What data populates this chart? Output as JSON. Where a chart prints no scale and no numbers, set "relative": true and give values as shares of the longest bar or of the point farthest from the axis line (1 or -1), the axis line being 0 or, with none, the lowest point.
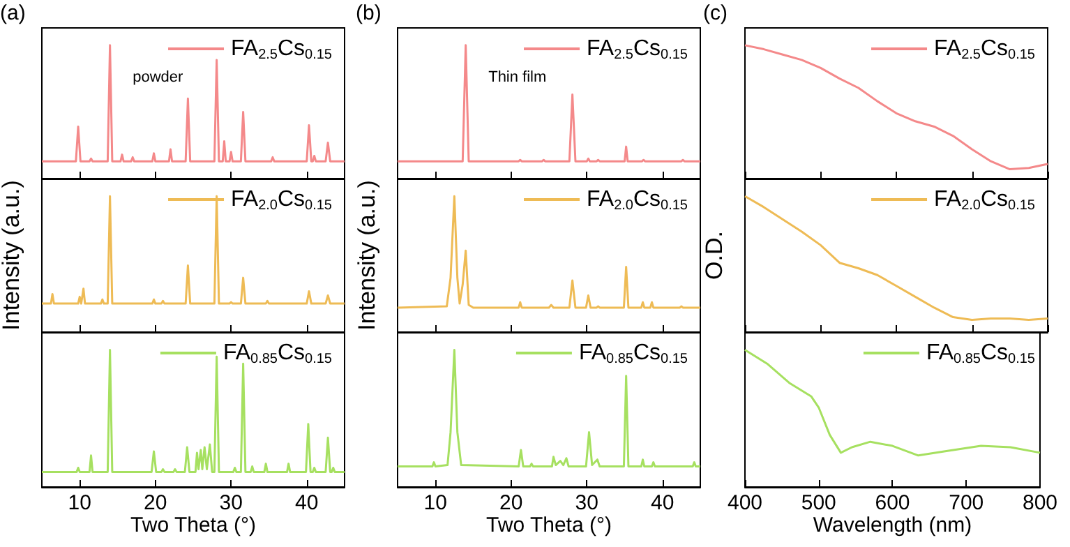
{
  "chart_data": [
    {
      "type": "line",
      "relative": true,
      "annotations": [
        "(a)",
        "powder"
      ],
      "xlim": [
        5,
        45
      ],
      "xticks": [
        10,
        20,
        30,
        40
      ],
      "tick_labels": false,
      "legend": "top right",
      "x": [
        5,
        9.5,
        9.8,
        10.1,
        11.3,
        11.5,
        11.7,
        13.7,
        14,
        14.3,
        15.4,
        15.6,
        15.8,
        16.8,
        17,
        17.2,
        19.6,
        19.8,
        20,
        21.8,
        22,
        22.2,
        24,
        24.3,
        24.6,
        27.8,
        28.1,
        28.4,
        28.9,
        29.1,
        29.3,
        29.8,
        30,
        30.2,
        31.3,
        31.6,
        31.9,
        35.3,
        35.5,
        35.7,
        40,
        40.3,
        40.6,
        40.8,
        41,
        41.2,
        42.5,
        42.8,
        43.1,
        45
      ],
      "series": [
        {
          "name": "FA$_{2.5}$Cs$_{0.15}$",
          "color": "#f4898a",
          "values": [
            0.13,
            0.13,
            0.39,
            0.13,
            0.13,
            0.15,
            0.13,
            0.13,
            1,
            0.13,
            0.13,
            0.18,
            0.13,
            0.13,
            0.16,
            0.13,
            0.13,
            0.19,
            0.13,
            0.13,
            0.22,
            0.13,
            0.13,
            0.6,
            0.13,
            0.13,
            0.89,
            0.13,
            0.13,
            0.28,
            0.13,
            0.13,
            0.2,
            0.13,
            0.13,
            0.5,
            0.13,
            0.13,
            0.16,
            0.13,
            0.13,
            0.4,
            0.13,
            0.13,
            0.17,
            0.13,
            0.13,
            0.27,
            0.13,
            0.13
          ]
        }
      ]
    },
    {
      "type": "line",
      "relative": true,
      "ylabel": "Intensity (a.u.)",
      "xlim": [
        5,
        45
      ],
      "xticks": [
        10,
        20,
        30,
        40
      ],
      "tick_labels": false,
      "legend": "top right",
      "x": [
        5,
        6.2,
        6.4,
        6.6,
        9.8,
        10,
        10.2,
        10.3,
        10.5,
        10.7,
        12.8,
        13,
        13.2,
        13.7,
        14,
        14.3,
        19.6,
        19.8,
        20,
        20.8,
        21,
        21.2,
        24,
        24.3,
        24.6,
        27.8,
        28.1,
        28.4,
        29.8,
        30,
        30.2,
        31.3,
        31.6,
        31.9,
        34.6,
        34.8,
        35,
        40,
        40.3,
        40.6,
        42.5,
        42.8,
        43.1,
        45
      ],
      "series": [
        {
          "name": "FA$_{2.0}$Cs$_{0.15}$",
          "color": "#eebb55",
          "values": [
            0.21,
            0.21,
            0.28,
            0.21,
            0.21,
            0.26,
            0.21,
            0.21,
            0.32,
            0.21,
            0.21,
            0.24,
            0.21,
            0.21,
            1,
            0.21,
            0.21,
            0.24,
            0.21,
            0.21,
            0.23,
            0.21,
            0.21,
            0.49,
            0.21,
            0.21,
            1,
            0.21,
            0.21,
            0.22,
            0.21,
            0.21,
            0.4,
            0.21,
            0.21,
            0.23,
            0.21,
            0.21,
            0.3,
            0.21,
            0.21,
            0.27,
            0.21,
            0.21
          ]
        }
      ]
    },
    {
      "type": "line",
      "relative": true,
      "xlabel": "Two Theta (°)",
      "xlim": [
        5,
        45
      ],
      "xticks": [
        10,
        20,
        30,
        40
      ],
      "tick_labels": "x",
      "legend": "top right",
      "x": [
        5,
        9.6,
        9.8,
        10,
        11.3,
        11.5,
        11.7,
        13.7,
        14,
        14.3,
        19.5,
        19.8,
        20.1,
        20.8,
        21,
        21.2,
        22.4,
        22.6,
        22.8,
        23.9,
        24.2,
        24.5,
        25.3,
        25.5,
        25.7,
        26,
        26.2,
        26.5,
        26.8,
        27.2,
        27.5,
        27.8,
        28.1,
        28.4,
        30.3,
        30.5,
        30.7,
        31.3,
        31.6,
        31.9,
        32.6,
        32.8,
        33,
        34.4,
        34.6,
        34.8,
        37.4,
        37.6,
        37.8,
        39.9,
        40.2,
        40.5,
        40.8,
        41,
        41.2,
        42.5,
        42.8,
        43.1,
        43.3,
        43.5,
        43.7,
        45
      ],
      "series": [
        {
          "name": "FA$_{0.85}$Cs$_{0.15}$",
          "color": "#a6e060",
          "values": [
            0.11,
            0.11,
            0.14,
            0.11,
            0.11,
            0.23,
            0.11,
            0.11,
            1,
            0.11,
            0.11,
            0.26,
            0.11,
            0.11,
            0.13,
            0.11,
            0.11,
            0.13,
            0.11,
            0.11,
            0.29,
            0.11,
            0.11,
            0.25,
            0.13,
            0.27,
            0.13,
            0.29,
            0.13,
            0.31,
            0.11,
            0.11,
            0.95,
            0.11,
            0.11,
            0.14,
            0.11,
            0.11,
            0.9,
            0.11,
            0.11,
            0.15,
            0.11,
            0.11,
            0.17,
            0.11,
            0.11,
            0.17,
            0.11,
            0.11,
            0.46,
            0.11,
            0.11,
            0.14,
            0.11,
            0.11,
            0.36,
            0.11,
            0.11,
            0.14,
            0.11,
            0.11
          ]
        }
      ]
    },
    {
      "type": "line",
      "relative": true,
      "annotations": [
        "(b)",
        "Thin film"
      ],
      "xlim": [
        5,
        45
      ],
      "xticks": [
        10,
        20,
        30,
        40
      ],
      "tick_labels": false,
      "legend": "top right",
      "x": [
        5,
        13.6,
        14,
        14.4,
        21,
        21.2,
        21.4,
        24.1,
        24.3,
        24.5,
        27.7,
        28.1,
        28.5,
        30,
        30.2,
        30.4,
        31.3,
        31.5,
        31.7,
        35,
        35.2,
        35.4,
        37.3,
        37.5,
        37.7,
        42.5,
        42.7,
        42.9,
        45
      ],
      "series": [
        {
          "name": "FA$_{2.5}$Cs$_{0.15}$",
          "color": "#f4898a",
          "values": [
            0.13,
            0.13,
            1,
            0.13,
            0.13,
            0.14,
            0.13,
            0.13,
            0.14,
            0.13,
            0.13,
            0.63,
            0.13,
            0.13,
            0.15,
            0.13,
            0.13,
            0.14,
            0.13,
            0.13,
            0.24,
            0.13,
            0.13,
            0.14,
            0.13,
            0.13,
            0.14,
            0.13,
            0.13
          ]
        }
      ]
    },
    {
      "type": "line",
      "relative": true,
      "ylabel": "Intensity (a.u.)",
      "xlim": [
        5,
        45
      ],
      "xticks": [
        10,
        20,
        30,
        40
      ],
      "tick_labels": false,
      "legend": "top right",
      "x": [
        5,
        11.5,
        12,
        12.5,
        12.9,
        13.2,
        13.6,
        14,
        14.4,
        15,
        21,
        21.2,
        21.4,
        25,
        25.3,
        25.6,
        27.7,
        28.1,
        28.5,
        29.9,
        30.2,
        30.5,
        31.3,
        31.5,
        31.7,
        34.9,
        35.2,
        35.5,
        37.2,
        37.4,
        37.6,
        38.4,
        38.6,
        38.8,
        42.3,
        42.5,
        42.7,
        45
      ],
      "series": [
        {
          "name": "FA$_{2.0}$Cs$_{0.15}$",
          "color": "#eebb55",
          "values": [
            0.18,
            0.19,
            0.4,
            1,
            0.4,
            0.21,
            0.35,
            0.6,
            0.2,
            0.18,
            0.18,
            0.22,
            0.18,
            0.18,
            0.2,
            0.18,
            0.18,
            0.38,
            0.18,
            0.18,
            0.27,
            0.18,
            0.18,
            0.19,
            0.18,
            0.18,
            0.48,
            0.18,
            0.18,
            0.22,
            0.18,
            0.18,
            0.22,
            0.18,
            0.18,
            0.19,
            0.18,
            0.18
          ]
        }
      ]
    },
    {
      "type": "line",
      "relative": true,
      "xlabel": "Two Theta (°)",
      "xlim": [
        5,
        45
      ],
      "xticks": [
        10,
        20,
        30,
        40
      ],
      "tick_labels": "x",
      "legend": "top right",
      "x": [
        5,
        9.6,
        9.8,
        10,
        11.6,
        12,
        12.5,
        12.9,
        13.4,
        21,
        21.3,
        21.6,
        22.5,
        22.7,
        22.9,
        25.4,
        25.6,
        25.9,
        26.5,
        26.9,
        27.3,
        27.6,
        29.9,
        30.3,
        30.7,
        31.4,
        31.7,
        34.9,
        35.2,
        35.5,
        37.2,
        37.4,
        37.6,
        38.6,
        38.8,
        39,
        44,
        44.2,
        44.4,
        45
      ],
      "series": [
        {
          "name": "FA$_{0.85}$Cs$_{0.15}$",
          "color": "#a6e060",
          "values": [
            0.15,
            0.15,
            0.18,
            0.15,
            0.16,
            0.4,
            1,
            0.4,
            0.16,
            0.15,
            0.27,
            0.15,
            0.15,
            0.17,
            0.15,
            0.15,
            0.22,
            0.16,
            0.19,
            0.16,
            0.21,
            0.15,
            0.15,
            0.4,
            0.16,
            0.2,
            0.15,
            0.15,
            0.81,
            0.15,
            0.15,
            0.2,
            0.15,
            0.15,
            0.18,
            0.15,
            0.15,
            0.18,
            0.15,
            0.15
          ]
        }
      ]
    },
    {
      "type": "line",
      "relative": true,
      "annotations": [
        "(c)"
      ],
      "tick_labels": false,
      "legend": "top right",
      "categories": [
        null,
        null,
        null,
        null,
        null,
        null,
        null,
        null,
        null,
        null,
        null,
        null,
        null,
        null,
        null,
        null,
        null
      ],
      "series": [
        {
          "name": "FA$_{2.5}$Cs$_{0.15}$",
          "color": "#f4898a",
          "values": [
            1,
            0.97,
            0.93,
            0.89,
            0.83,
            0.75,
            0.68,
            0.58,
            0.49,
            0.43,
            0.39,
            0.32,
            0.22,
            0.13,
            0.07,
            0.08,
            0.11
          ]
        }
      ]
    },
    {
      "type": "line",
      "relative": true,
      "ylabel": "O.D.",
      "tick_labels": false,
      "legend": "top right",
      "categories": [
        null,
        null,
        null,
        null,
        null,
        null,
        null,
        null,
        null,
        null,
        null,
        null,
        null,
        null,
        null,
        null,
        null
      ],
      "series": [
        {
          "name": "FA$_{2.0}$Cs$_{0.15}$",
          "color": "#eebb55",
          "values": [
            1,
            0.92,
            0.83,
            0.74,
            0.64,
            0.51,
            0.47,
            0.42,
            0.34,
            0.26,
            0.18,
            0.11,
            0.09,
            0.1,
            0.1,
            0.09,
            0.1
          ]
        }
      ]
    },
    {
      "type": "line",
      "relative": true,
      "xlabel": "Wavelength (nm)",
      "xlim": [
        400,
        800
      ],
      "xticks": [
        400,
        500,
        600,
        700,
        800
      ],
      "tick_labels": "x",
      "legend": "top right",
      "x": [
        400,
        430,
        460,
        490,
        500,
        515,
        530,
        545,
        570,
        600,
        635,
        670,
        720,
        760,
        800
      ],
      "series": [
        {
          "name": "FA$_{0.85}$Cs$_{0.15}$",
          "color": "#a6e060",
          "values": [
            1,
            0.9,
            0.76,
            0.66,
            0.58,
            0.38,
            0.25,
            0.29,
            0.33,
            0.3,
            0.23,
            0.26,
            0.3,
            0.29,
            0.25
          ]
        }
      ]
    }
  ]
}
